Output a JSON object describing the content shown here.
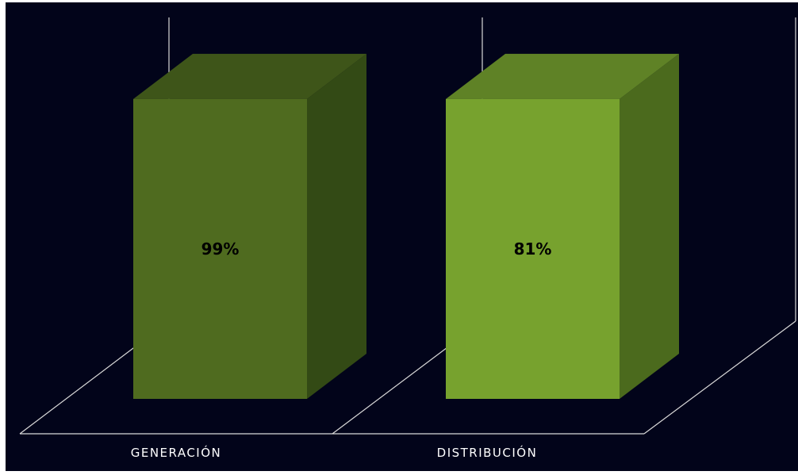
{
  "chart_data": {
    "type": "bar",
    "categories": [
      "GENERACIÓN",
      "DISTRIBUCIÓN"
    ],
    "values": [
      99,
      81
    ],
    "data_labels": [
      "99%",
      "81%"
    ],
    "ylim": [
      0,
      100
    ],
    "grid": false,
    "legend": "none",
    "style": "3d-column",
    "colors": {
      "background": "#02041a",
      "axis_lines": "#d9d9d9",
      "label_text": "#ffffff",
      "value_text": "#000000",
      "bars": [
        {
          "front": "#4f6b1f",
          "side": "#334a15",
          "top": "#3e5519"
        },
        {
          "front": "#77a22e",
          "side": "#4b6a1d",
          "top": "#5f8226"
        }
      ]
    }
  }
}
